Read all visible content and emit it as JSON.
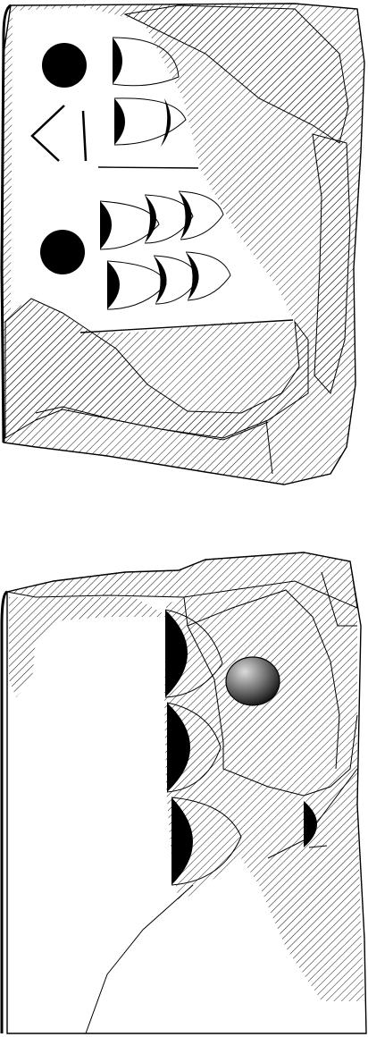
{
  "colors": {
    "background": "#ffffff",
    "ink": "#000000",
    "hatch": "#000000",
    "stone_highlight": "#d9d9d9",
    "stone_shadow": "#111111"
  },
  "icons": {
    "upper_tablet": "rock-fragment-icon",
    "lower_tablet": "rock-fragment-icon",
    "circle_mark": "dot-icon",
    "crescent_mark": "crescent-icon",
    "angle_mark": "chevron-icon",
    "pebble": "pebble-icon"
  },
  "upper_fragment": {
    "circle_count": 2,
    "crescent_count": 9,
    "angle_mark_count": 1
  },
  "lower_fragment": {
    "crescent_count": 4,
    "pebble_count": 1
  }
}
